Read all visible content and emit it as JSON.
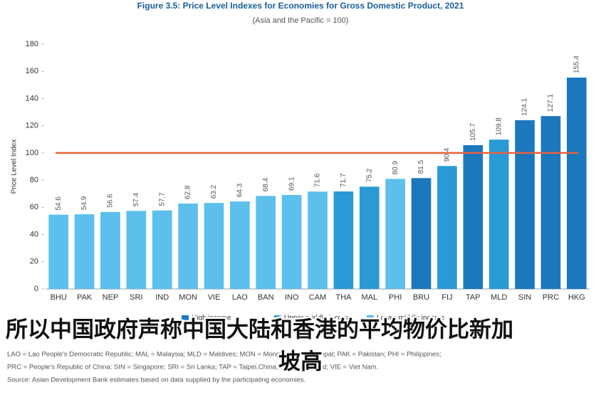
{
  "chart_data": {
    "type": "bar",
    "title": "Figure 3.5: Price Level Indexes for Economies for Gross Domestic Product, 2021",
    "subtitle": "(Asia and the Pacific = 100)",
    "y_label": "Price Level Index",
    "categories": [
      "BHU",
      "PAK",
      "NEP",
      "SRI",
      "IND",
      "MON",
      "VIE",
      "LAO",
      "BAN",
      "INO",
      "CAM",
      "THA",
      "MAL",
      "PHI",
      "BRU",
      "FIJ",
      "TAP",
      "MLD",
      "SIN",
      "PRC",
      "HKG"
    ],
    "series": [
      {
        "name": "High income",
        "color": "#1b78bd",
        "values": [
          null,
          null,
          null,
          null,
          null,
          null,
          null,
          null,
          null,
          null,
          null,
          null,
          null,
          null,
          81.5,
          null,
          105.7,
          null,
          124.1,
          127.1,
          155.4
        ]
      },
      {
        "name": "Upper-middle income",
        "color": "#2a9ad6",
        "values": [
          null,
          null,
          null,
          null,
          null,
          null,
          null,
          null,
          null,
          null,
          null,
          71.7,
          75.2,
          null,
          null,
          90.4,
          null,
          109.8,
          null,
          null,
          null
        ]
      },
      {
        "name": "Lower-middle income",
        "color": "#5cbfec",
        "values": [
          54.6,
          54.9,
          56.6,
          57.4,
          57.7,
          62.8,
          63.2,
          64.3,
          68.4,
          69.1,
          71.6,
          null,
          null,
          80.9,
          null,
          null,
          null,
          null,
          null,
          null,
          null
        ]
      }
    ],
    "reference_line": 100,
    "reference_color": "#e8623a",
    "ylim": [
      0,
      180
    ],
    "yticks": [
      0,
      20,
      40,
      60,
      80,
      100,
      120,
      140,
      160,
      180
    ],
    "notes": [
      "LAO = Lao People's Democratic Republic; MAL = Malaysia; MLD = Maldives; MON = Mongolia; NEP = Nepal; PAK = Pakistan; PHI = Philippines;",
      "PRC = People's Republic of China; SIN = Singapore; SRI = Sri Lanka; TAP = Taipei,China; THA = Thailand; VIE = Viet Nam."
    ],
    "source": "Source: Asian Development Bank estimates based on data supplied by the participating economies.",
    "caption": [
      "所以中国政府声称中国大陆和香港的平均物价比新加",
      "坡高"
    ]
  }
}
